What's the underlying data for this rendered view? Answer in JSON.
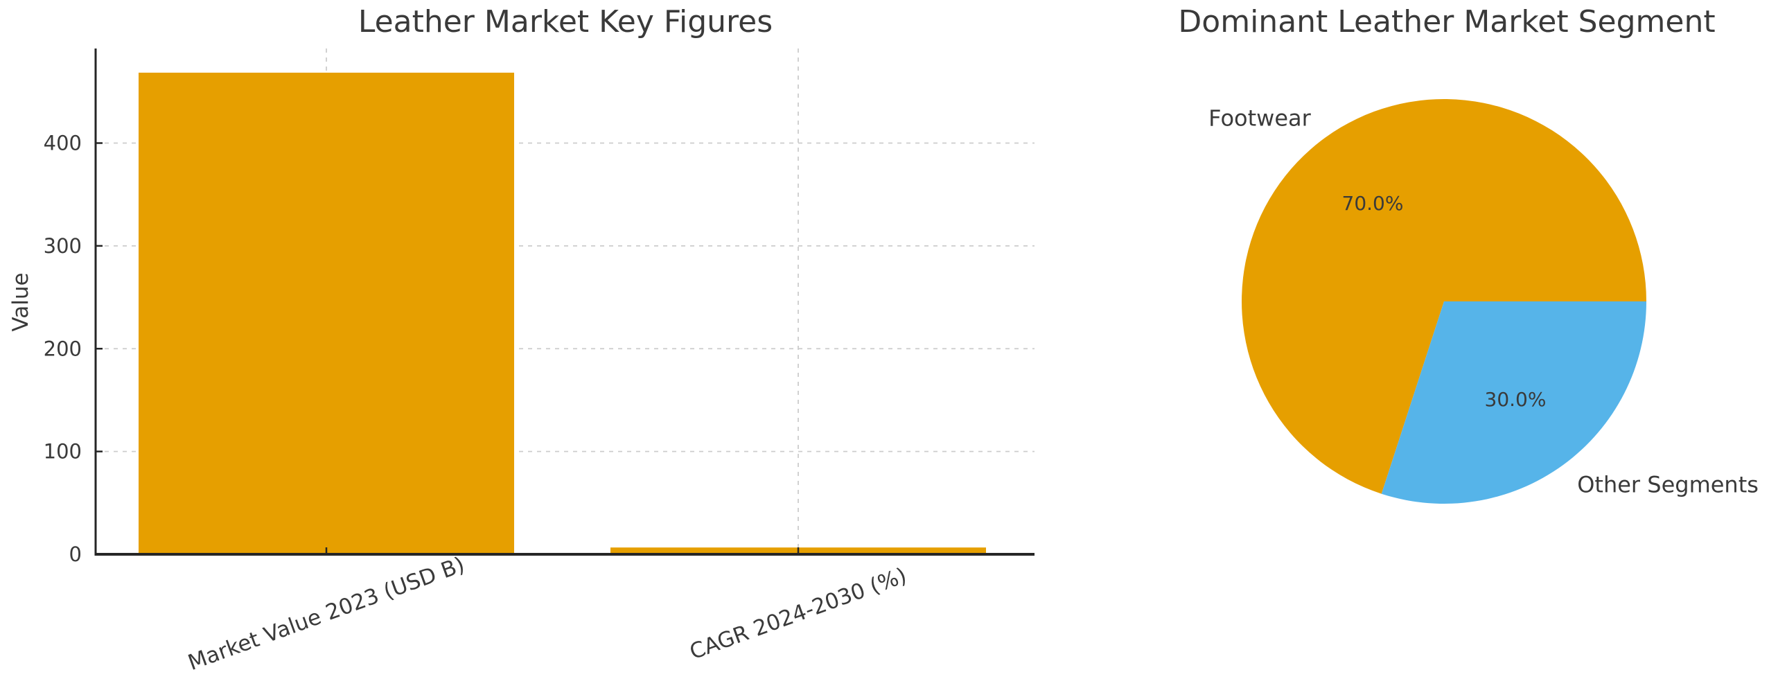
{
  "figure": {
    "background": "#FFFFFF",
    "text_color": "#3A3A3A",
    "spine_color": "#262626",
    "grid_color": "#CCCCCC"
  },
  "chart_data": [
    {
      "type": "bar",
      "title": "Leather Market Key Figures",
      "categories": [
        "Market Value 2023 (USD B)",
        "CAGR 2024-2030 (%)"
      ],
      "values": [
        468.49,
        6.6
      ],
      "xlabel": "",
      "ylabel": "Value",
      "y_ticks": [
        0,
        100,
        200,
        300,
        400
      ],
      "ylim": [
        0,
        492
      ],
      "bar_color": "#E69F00",
      "grid": "dashed-both-axes",
      "xtick_rotation_deg": 20,
      "legend": "none"
    },
    {
      "type": "pie",
      "title": "Dominant Leather Market Segment",
      "labels": [
        "Footwear",
        "Other Segments"
      ],
      "values": [
        70.0,
        30.0
      ],
      "percent_labels": [
        "70.0%",
        "30.0%"
      ],
      "colors": [
        "#E69F00",
        "#56B4E9"
      ],
      "start_angle_deg": 0,
      "direction": "counterclockwise",
      "legend": "none"
    }
  ]
}
